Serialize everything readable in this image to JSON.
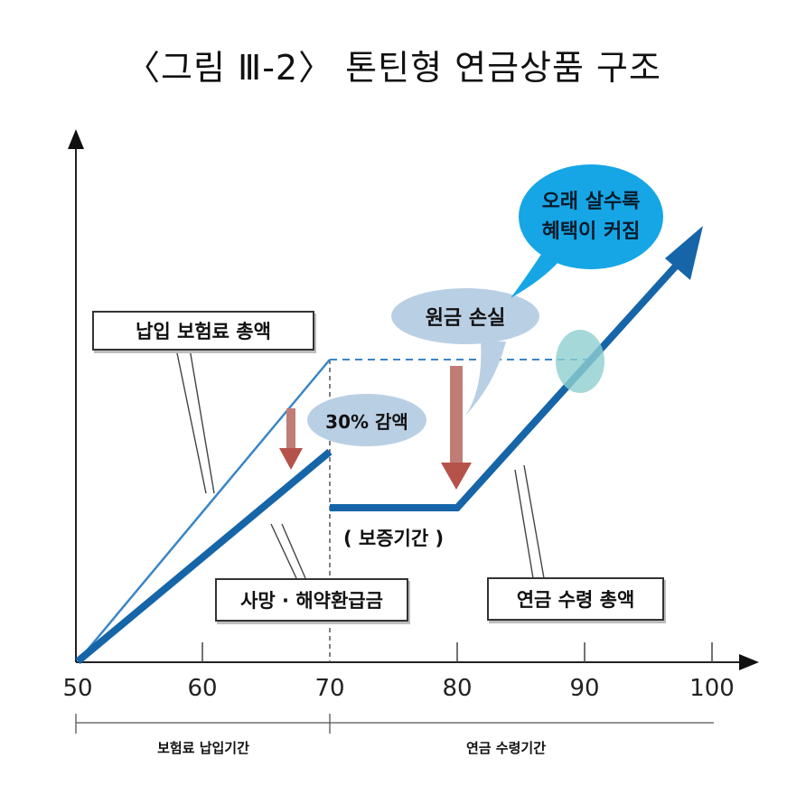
{
  "title": "〈그림 Ⅲ-2〉 톤틴형 연금상품 구조",
  "labels": {
    "total_premium": "납입 보험료 총액",
    "death_surrender": "사망 · 해약환급금",
    "total_annuity": "연금 수령 총액",
    "guarantee_period": "( 보증기간 )",
    "reduction": "30% 감액",
    "principal_loss": "원금 손실",
    "longevity_benefit_line1": "오래 살수록",
    "longevity_benefit_line2": "혜택이 커짐"
  },
  "x_axis": {
    "ticks": [
      "50",
      "60",
      "70",
      "80",
      "90",
      "100"
    ],
    "periods": [
      "보험료 납입기간",
      "연금 수령기간"
    ]
  },
  "colors": {
    "main_line": "#1565a8",
    "thin_line": "#3a86c6",
    "dashed_line": "#3a86c6",
    "down_arrow": "#b5524a",
    "ellipse_light": "#b9cfe4",
    "ellipse_cyan": "#16a6e6",
    "intersection_marker": "#8fcfcf"
  }
}
